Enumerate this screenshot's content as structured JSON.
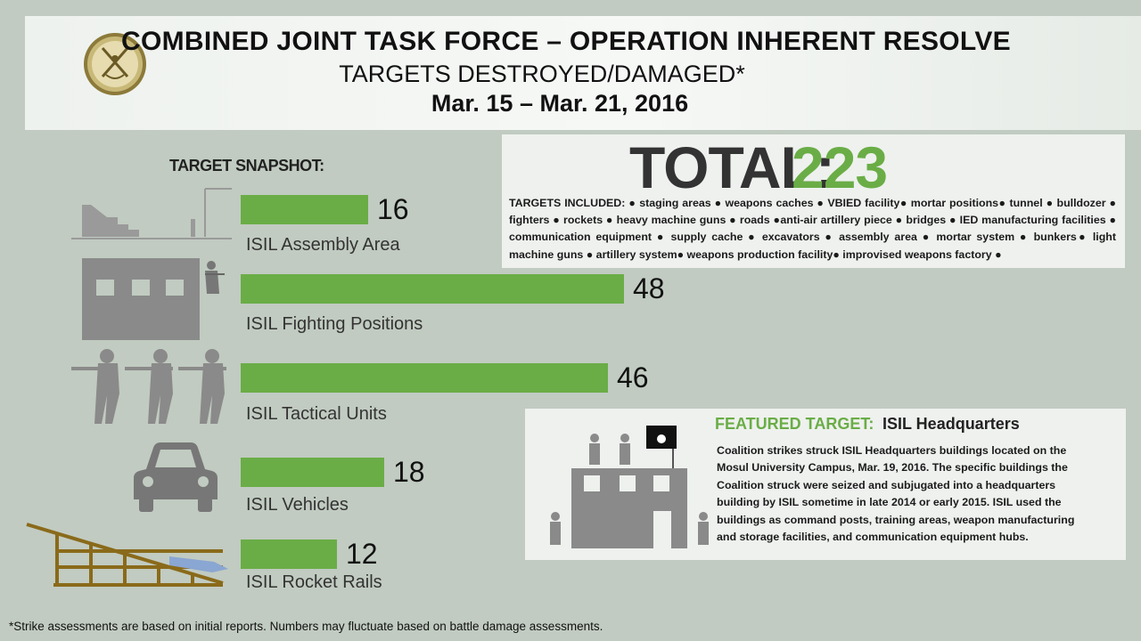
{
  "header": {
    "title": "COMBINED JOINT TASK FORCE – OPERATION INHERENT RESOLVE",
    "subtitle": "TARGETS DESTROYED/DAMAGED*",
    "date_range": "Mar. 15 – Mar. 21,  2016"
  },
  "snapshot_label": "TARGET SNAPSHOT:",
  "total": {
    "label": "TOTAL:",
    "value": "223",
    "targets_included_label": "TARGETS INCLUDED:",
    "targets_included_text": "● staging areas ● weapons caches ● VBIED facility● mortar positions● tunnel ● bulldozer ● fighters ● rockets ● heavy machine guns ● roads ●anti-air artillery piece ● bridges ● IED manufacturing facilities ● communication equipment ● supply cache ● excavators ● assembly area ● mortar system ● bunkers● light machine guns ● artillery system● weapons production facility● improvised weapons factory ●"
  },
  "featured": {
    "label": "FEATURED TARGET:",
    "name": "ISIL Headquarters",
    "body": "Coalition strikes struck ISIL Headquarters buildings located on the Mosul University Campus, Mar. 19, 2016. The specific buildings the Coalition struck were seized and subjugated into a headquarters building by ISIL sometime in late 2014 or early 2015.  ISIL used the buildings as command posts, training areas, weapon manufacturing and storage facilities, and communication equipment hubs."
  },
  "footnote": "*Strike assessments are based on initial reports. Numbers may fluctuate based on battle damage assessments.",
  "colors": {
    "bar": "#6aad46",
    "background": "#c1cbc1",
    "icon_gray": "#8a8a8a"
  },
  "chart_data": {
    "type": "bar",
    "orientation": "horizontal",
    "categories": [
      "ISIL Assembly Area",
      "ISIL Fighting Positions",
      "ISIL Tactical Units",
      "ISIL Vehicles",
      "ISIL Rocket Rails"
    ],
    "values": [
      16,
      48,
      46,
      18,
      12
    ],
    "value_labels": [
      "16",
      "48",
      "46",
      "18",
      "12"
    ],
    "icons": [
      "building-stairs-icon",
      "soldier-building-icon",
      "soldiers-icon",
      "car-icon",
      "rocket-rail-icon"
    ],
    "title": "",
    "xlabel": "",
    "ylabel": "",
    "xlim": [
      0,
      48
    ],
    "grid": false,
    "legend": "none"
  }
}
